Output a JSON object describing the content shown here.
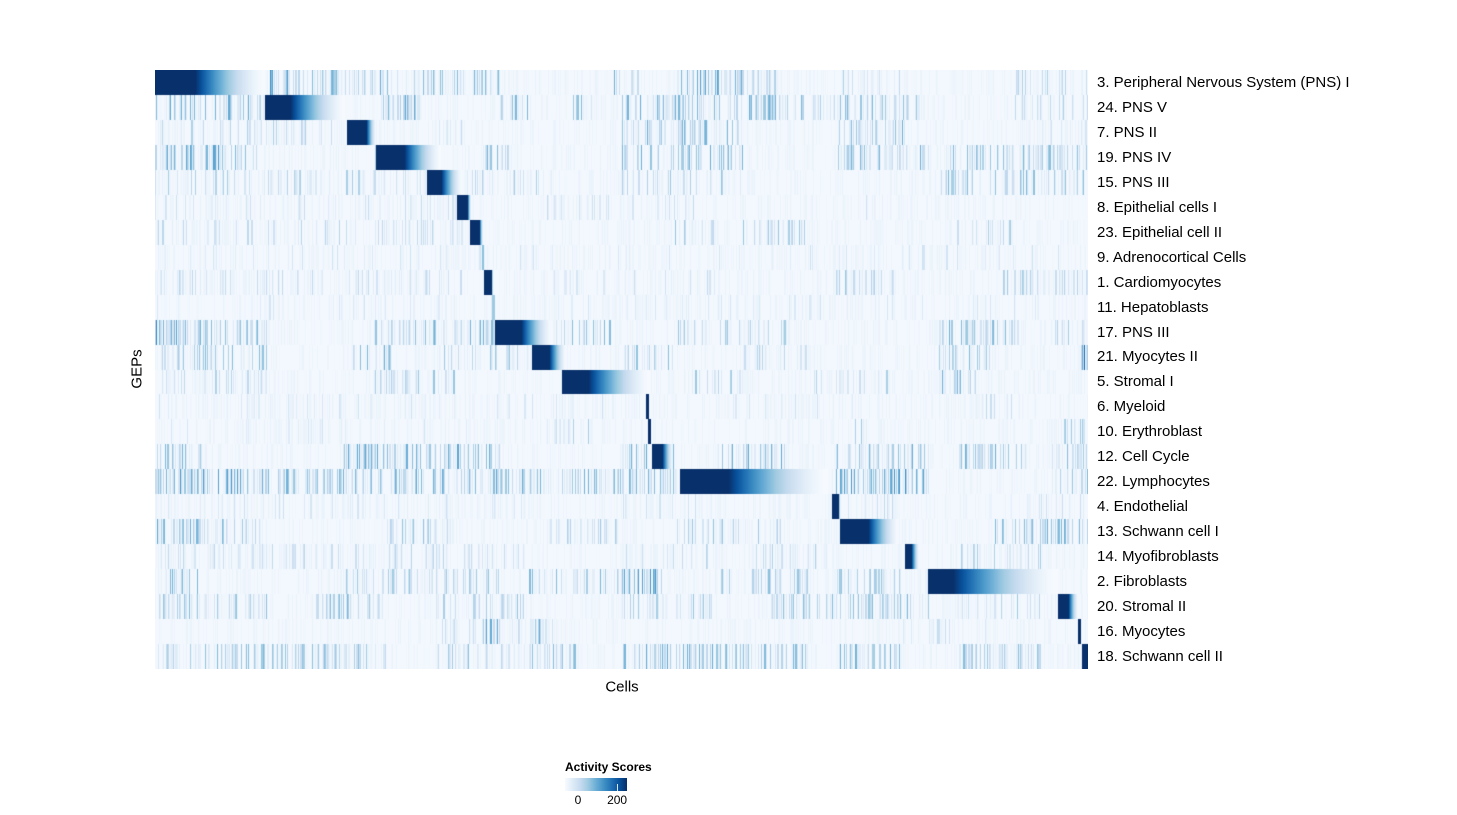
{
  "chart_data": {
    "type": "heatmap",
    "title": "",
    "xlabel": "Cells",
    "ylabel": "GEPs",
    "grid": false,
    "legend": {
      "title": "Activity Scores",
      "position": "bottom",
      "min_label": "0",
      "max_label": "200",
      "tick_values": [
        0,
        200
      ],
      "scale_max": 240
    },
    "colormap": {
      "name": "Blues",
      "stops": [
        "#f7fbff",
        "#deebf7",
        "#c6dbef",
        "#9ecae1",
        "#6baed6",
        "#4292c6",
        "#2171b5",
        "#08519c",
        "#08306b"
      ]
    },
    "rows": [
      {
        "label": "3. Peripheral Nervous System (PNS) I",
        "block": {
          "start": 0.0,
          "core_end": 0.043,
          "fade_end": 0.118,
          "peak": 240
        },
        "scatter": [
          [
            0.12,
            0.165,
            0.45,
            180
          ],
          [
            0.165,
            0.27,
            0.35,
            130
          ],
          [
            0.27,
            0.37,
            0.3,
            110
          ],
          [
            0.49,
            0.52,
            0.3,
            120
          ],
          [
            0.56,
            0.63,
            0.5,
            145
          ],
          [
            0.63,
            0.67,
            0.3,
            95
          ],
          [
            0.73,
            0.8,
            0.25,
            85
          ],
          [
            0.92,
            1.0,
            0.28,
            85
          ]
        ]
      },
      {
        "label": "24. PNS V",
        "block": {
          "start": 0.118,
          "core_end": 0.145,
          "fade_end": 0.204,
          "peak": 240
        },
        "scatter": [
          [
            0.0,
            0.118,
            0.42,
            130
          ],
          [
            0.235,
            0.285,
            0.45,
            130
          ],
          [
            0.37,
            0.4,
            0.4,
            120
          ],
          [
            0.44,
            0.47,
            0.3,
            110
          ],
          [
            0.5,
            0.575,
            0.35,
            120
          ],
          [
            0.575,
            0.68,
            0.45,
            130
          ],
          [
            0.68,
            0.82,
            0.35,
            110
          ],
          [
            0.92,
            1.0,
            0.28,
            85
          ]
        ]
      },
      {
        "label": "7. PNS II",
        "block": {
          "start": 0.206,
          "core_end": 0.226,
          "fade_end": 0.237,
          "peak": 240
        },
        "scatter": [
          [
            0.0,
            0.2,
            0.22,
            85
          ],
          [
            0.3,
            0.34,
            0.2,
            85
          ],
          [
            0.5,
            0.63,
            0.35,
            120
          ],
          [
            0.73,
            0.81,
            0.38,
            120
          ],
          [
            0.95,
            1.0,
            0.22,
            70
          ]
        ]
      },
      {
        "label": "19. PNS IV",
        "block": {
          "start": 0.237,
          "core_end": 0.267,
          "fade_end": 0.307,
          "peak": 240
        },
        "scatter": [
          [
            0.0,
            0.11,
            0.5,
            145
          ],
          [
            0.235,
            0.27,
            0.4,
            120
          ],
          [
            0.35,
            0.38,
            0.35,
            120
          ],
          [
            0.5,
            0.63,
            0.38,
            120
          ],
          [
            0.73,
            0.83,
            0.38,
            120
          ],
          [
            0.84,
            1.0,
            0.38,
            110
          ]
        ]
      },
      {
        "label": "15. PNS III",
        "block": {
          "start": 0.292,
          "core_end": 0.307,
          "fade_end": 0.329,
          "peak": 240
        },
        "scatter": [
          [
            0.0,
            0.29,
            0.28,
            85
          ],
          [
            0.33,
            0.43,
            0.22,
            85
          ],
          [
            0.5,
            0.63,
            0.28,
            95
          ],
          [
            0.84,
            1.0,
            0.33,
            110
          ]
        ]
      },
      {
        "label": "8. Epithelial cells I",
        "block": {
          "start": 0.324,
          "core_end": 0.334,
          "fade_end": 0.339,
          "peak": 240
        },
        "scatter": [
          [
            0.0,
            0.33,
            0.18,
            60
          ],
          [
            0.42,
            0.6,
            0.14,
            60
          ],
          [
            0.75,
            0.85,
            0.14,
            60
          ]
        ]
      },
      {
        "label": "23. Epithelial cell II",
        "block": {
          "start": 0.338,
          "core_end": 0.347,
          "fade_end": 0.352,
          "peak": 240
        },
        "scatter": [
          [
            0.0,
            0.33,
            0.22,
            70
          ],
          [
            0.55,
            0.6,
            0.28,
            95
          ],
          [
            0.63,
            0.7,
            0.28,
            95
          ],
          [
            0.85,
            0.92,
            0.22,
            85
          ]
        ]
      },
      {
        "label": "9. Adrenocortical Cells",
        "block": {
          "start": 0.35,
          "core_end": 0.353,
          "fade_end": 0.353,
          "peak": 100
        },
        "scatter": [
          [
            0.0,
            1.0,
            0.1,
            50
          ]
        ]
      },
      {
        "label": "1. Cardiomyocytes",
        "block": {
          "start": 0.353,
          "core_end": 0.36,
          "fade_end": 0.362,
          "peak": 240
        },
        "scatter": [
          [
            0.0,
            0.33,
            0.22,
            70
          ],
          [
            0.42,
            0.6,
            0.14,
            60
          ],
          [
            0.73,
            0.8,
            0.28,
            95
          ],
          [
            0.9,
            1.0,
            0.26,
            85
          ]
        ]
      },
      {
        "label": "11. Hepatoblasts",
        "block": {
          "start": 0.361,
          "core_end": 0.364,
          "fade_end": 0.364,
          "peak": 90
        },
        "scatter": [
          [
            0.0,
            1.0,
            0.1,
            45
          ]
        ]
      },
      {
        "label": "17. PNS III",
        "block": {
          "start": 0.364,
          "core_end": 0.392,
          "fade_end": 0.426,
          "peak": 240
        },
        "scatter": [
          [
            0.0,
            0.035,
            0.65,
            170
          ],
          [
            0.035,
            0.12,
            0.38,
            120
          ],
          [
            0.235,
            0.37,
            0.38,
            120
          ],
          [
            0.42,
            0.49,
            0.28,
            110
          ],
          [
            0.56,
            0.68,
            0.28,
            95
          ],
          [
            0.84,
            0.93,
            0.38,
            120
          ],
          [
            0.96,
            1.0,
            0.28,
            95
          ]
        ]
      },
      {
        "label": "21. Myocytes II",
        "block": {
          "start": 0.404,
          "core_end": 0.422,
          "fade_end": 0.441,
          "peak": 240
        },
        "scatter": [
          [
            0.005,
            0.12,
            0.32,
            110
          ],
          [
            0.21,
            0.26,
            0.38,
            120
          ],
          [
            0.3,
            0.4,
            0.28,
            95
          ],
          [
            0.5,
            0.56,
            0.28,
            110
          ],
          [
            0.63,
            0.7,
            0.28,
            95
          ],
          [
            0.84,
            0.9,
            0.38,
            120
          ],
          [
            0.992,
            1.0,
            0.8,
            205
          ]
        ]
      },
      {
        "label": "5. Stromal I",
        "block": {
          "start": 0.436,
          "core_end": 0.464,
          "fade_end": 0.531,
          "peak": 240
        },
        "scatter": [
          [
            0.0,
            0.12,
            0.28,
            85
          ],
          [
            0.235,
            0.32,
            0.28,
            95
          ],
          [
            0.56,
            0.63,
            0.22,
            95
          ],
          [
            0.7,
            0.8,
            0.22,
            85
          ],
          [
            0.84,
            0.88,
            0.32,
            120
          ]
        ]
      },
      {
        "label": "6. Myeloid",
        "block": {
          "start": 0.526,
          "core_end": 0.53,
          "fade_end": 0.53,
          "peak": 240
        },
        "scatter": [
          [
            0.0,
            0.53,
            0.13,
            50
          ],
          [
            0.6,
            0.75,
            0.13,
            50
          ],
          [
            0.87,
            0.93,
            0.22,
            70
          ]
        ]
      },
      {
        "label": "10. Erythroblast",
        "block": {
          "start": 0.528,
          "core_end": 0.532,
          "fade_end": 0.532,
          "peak": 240
        },
        "scatter": [
          [
            0.0,
            0.35,
            0.1,
            45
          ],
          [
            0.42,
            0.47,
            0.28,
            95
          ],
          [
            0.75,
            0.78,
            0.28,
            95
          ],
          [
            0.97,
            1.0,
            0.28,
            95
          ]
        ]
      },
      {
        "label": "12. Cell Cycle",
        "block": {
          "start": 0.533,
          "core_end": 0.543,
          "fade_end": 0.555,
          "peak": 240
        },
        "scatter": [
          [
            0.0,
            0.05,
            0.42,
            120
          ],
          [
            0.2,
            0.37,
            0.4,
            130
          ],
          [
            0.5,
            0.56,
            0.42,
            130
          ],
          [
            0.6,
            0.68,
            0.42,
            130
          ],
          [
            0.73,
            0.83,
            0.42,
            130
          ],
          [
            0.86,
            0.94,
            0.42,
            120
          ],
          [
            0.96,
            1.0,
            0.38,
            120
          ]
        ]
      },
      {
        "label": "22. Lymphocytes",
        "block": {
          "start": 0.563,
          "core_end": 0.614,
          "fade_end": 0.721,
          "peak": 240
        },
        "scatter": [
          [
            0.0,
            0.12,
            0.5,
            145
          ],
          [
            0.12,
            0.24,
            0.42,
            120
          ],
          [
            0.24,
            0.4,
            0.42,
            130
          ],
          [
            0.4,
            0.56,
            0.38,
            120
          ],
          [
            0.73,
            0.83,
            0.5,
            155
          ],
          [
            0.96,
            1.0,
            0.42,
            120
          ]
        ]
      },
      {
        "label": "4. Endothelial",
        "block": {
          "start": 0.726,
          "core_end": 0.732,
          "fade_end": 0.734,
          "peak": 240
        },
        "scatter": [
          [
            0.0,
            0.4,
            0.13,
            50
          ],
          [
            0.5,
            0.6,
            0.13,
            50
          ],
          [
            0.73,
            0.8,
            0.22,
            70
          ],
          [
            0.9,
            1.0,
            0.13,
            60
          ]
        ]
      },
      {
        "label": "13. Schwann cell I",
        "block": {
          "start": 0.734,
          "core_end": 0.764,
          "fade_end": 0.797,
          "peak": 240
        },
        "scatter": [
          [
            0.0,
            0.05,
            0.45,
            130
          ],
          [
            0.05,
            0.12,
            0.32,
            110
          ],
          [
            0.24,
            0.33,
            0.28,
            95
          ],
          [
            0.42,
            0.5,
            0.28,
            95
          ],
          [
            0.56,
            0.68,
            0.28,
            95
          ],
          [
            0.9,
            1.0,
            0.38,
            120
          ]
        ]
      },
      {
        "label": "14. Myofibroblasts",
        "block": {
          "start": 0.804,
          "core_end": 0.81,
          "fade_end": 0.819,
          "peak": 240
        },
        "scatter": [
          [
            0.0,
            0.4,
            0.22,
            70
          ],
          [
            0.5,
            0.6,
            0.22,
            70
          ],
          [
            0.64,
            0.72,
            0.22,
            85
          ],
          [
            0.86,
            0.95,
            0.28,
            85
          ]
        ]
      },
      {
        "label": "2. Fibroblasts",
        "block": {
          "start": 0.829,
          "core_end": 0.855,
          "fade_end": 0.968,
          "peak": 240
        },
        "scatter": [
          [
            0.01,
            0.05,
            0.38,
            120
          ],
          [
            0.2,
            0.37,
            0.28,
            95
          ],
          [
            0.4,
            0.5,
            0.32,
            110
          ],
          [
            0.5,
            0.545,
            0.5,
            155
          ],
          [
            0.6,
            0.7,
            0.32,
            110
          ],
          [
            0.73,
            0.8,
            0.28,
            95
          ]
        ]
      },
      {
        "label": "20. Stromal II",
        "block": {
          "start": 0.968,
          "core_end": 0.979,
          "fade_end": 0.989,
          "peak": 240
        },
        "scatter": [
          [
            0.0,
            0.12,
            0.38,
            110
          ],
          [
            0.17,
            0.25,
            0.38,
            110
          ],
          [
            0.3,
            0.4,
            0.28,
            95
          ],
          [
            0.5,
            0.6,
            0.28,
            95
          ],
          [
            0.66,
            0.83,
            0.38,
            110
          ],
          [
            0.86,
            0.95,
            0.28,
            95
          ]
        ]
      },
      {
        "label": "16. Myocytes",
        "block": {
          "start": 0.989,
          "core_end": 0.993,
          "fade_end": 0.993,
          "peak": 240
        },
        "scatter": [
          [
            0.3,
            0.45,
            0.18,
            70
          ],
          [
            0.35,
            0.37,
            0.45,
            145
          ],
          [
            0.4,
            0.42,
            0.45,
            145
          ],
          [
            0.8,
            0.9,
            0.13,
            60
          ]
        ]
      },
      {
        "label": "18. Schwann cell II",
        "block": {
          "start": 0.994,
          "core_end": 1.0,
          "fade_end": 1.0,
          "peak": 240
        },
        "scatter": [
          [
            0.0,
            0.25,
            0.38,
            110
          ],
          [
            0.3,
            0.45,
            0.38,
            110
          ],
          [
            0.5,
            0.6,
            0.45,
            145
          ],
          [
            0.6,
            0.7,
            0.38,
            110
          ],
          [
            0.73,
            0.8,
            0.38,
            120
          ],
          [
            0.86,
            0.95,
            0.38,
            110
          ]
        ]
      }
    ]
  }
}
